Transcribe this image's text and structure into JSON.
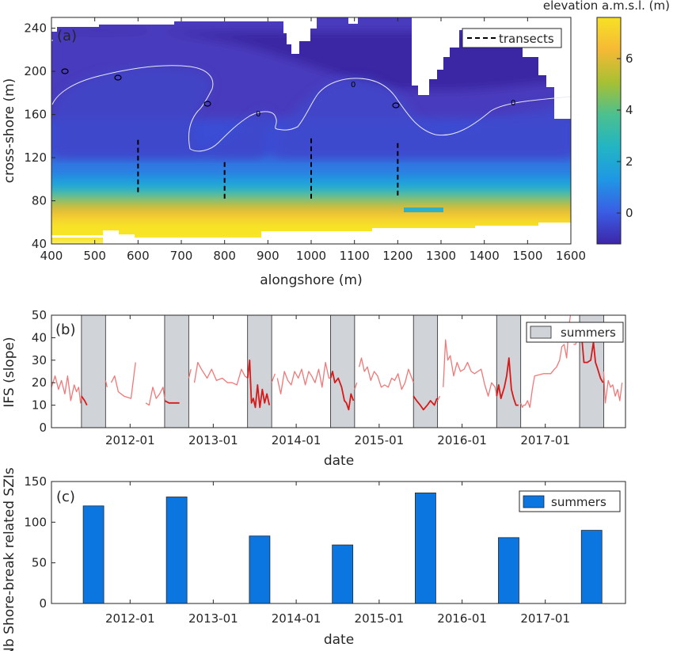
{
  "chart_data": [
    {
      "type": "heatmap",
      "panel_label": "(a)",
      "xlabel": "alongshore (m)",
      "ylabel": "cross-shore (m)",
      "xlim": [
        400,
        1600
      ],
      "ylim": [
        40,
        250
      ],
      "xticks": [
        "400",
        "500",
        "600",
        "700",
        "800",
        "900",
        "1000",
        "1100",
        "1200",
        "1300",
        "1400",
        "1500",
        "1600"
      ],
      "yticks": [
        "40",
        "80",
        "120",
        "160",
        "200",
        "240"
      ],
      "colorbar": {
        "title": "elevation a.m.s.l. (m)",
        "range": [
          -1.2,
          7.6
        ],
        "ticks": [
          "0",
          "2",
          "4",
          "6"
        ],
        "colors": [
          "#3d26a8",
          "#3a5ee5",
          "#1f98e4",
          "#22b5c4",
          "#4cc08f",
          "#a8c033",
          "#f6b935",
          "#f7e125"
        ]
      },
      "contour_label": "0",
      "legend": [
        {
          "label": "transects",
          "style": "dashed",
          "color": "#000000"
        }
      ],
      "transects": [
        {
          "x": 600,
          "y0": 88,
          "y1": 138
        },
        {
          "x": 800,
          "y0": 82,
          "y1": 117
        },
        {
          "x": 1000,
          "y0": 82,
          "y1": 138
        },
        {
          "x": 1200,
          "y0": 85,
          "y1": 135
        }
      ]
    },
    {
      "type": "line",
      "panel_label": "(b)",
      "xlabel": "date",
      "ylabel": "IFS (slope)",
      "ylim": [
        0,
        50
      ],
      "yticks": [
        "0",
        "10",
        "20",
        "30",
        "40",
        "50"
      ],
      "xticks": [
        "2012-01",
        "2013-01",
        "2014-01",
        "2015-01",
        "2016-01",
        "2017-01"
      ],
      "xlim": [
        "2011-01-20",
        "2017-12-20"
      ],
      "legend": [
        {
          "label": "summers",
          "color": "#d0d3d8"
        }
      ],
      "summers": [
        [
          "2011-06-01",
          "2011-09-15"
        ],
        [
          "2012-06-01",
          "2012-09-15"
        ],
        [
          "2013-06-01",
          "2013-09-15"
        ],
        [
          "2014-06-01",
          "2014-09-15"
        ],
        [
          "2015-06-01",
          "2015-09-15"
        ],
        [
          "2016-06-01",
          "2016-09-15"
        ],
        [
          "2017-06-01",
          "2017-09-15"
        ]
      ],
      "series": [
        {
          "color": "#f07878",
          "segments": [
            [
              [
                "2011-01-20",
                18
              ],
              [
                "2011-02-05",
                23
              ],
              [
                "2011-02-20",
                17
              ],
              [
                "2011-03-05",
                21
              ],
              [
                "2011-03-20",
                15
              ],
              [
                "2011-04-01",
                23
              ],
              [
                "2011-04-15",
                12
              ],
              [
                "2011-04-30",
                19
              ],
              [
                "2011-05-10",
                16
              ],
              [
                "2011-05-20",
                18
              ],
              [
                "2011-05-28",
                11
              ],
              [
                "2011-06-01",
                14
              ]
            ],
            [
              [
                "2011-09-15",
                21
              ],
              [
                "2011-09-22",
                18
              ]
            ],
            [
              [
                "2011-10-10",
                20
              ],
              [
                "2011-10-25",
                23
              ],
              [
                "2011-11-10",
                16
              ],
              [
                "2011-12-05",
                14
              ],
              [
                "2012-01-05",
                13
              ],
              [
                "2012-01-25",
                29
              ]
            ],
            [
              [
                "2012-03-10",
                11
              ],
              [
                "2012-03-25",
                10
              ],
              [
                "2012-04-10",
                18
              ],
              [
                "2012-04-25",
                13
              ],
              [
                "2012-05-10",
                15
              ],
              [
                "2012-05-25",
                18
              ],
              [
                "2012-06-01",
                13
              ]
            ],
            [
              [
                "2012-09-15",
                22
              ],
              [
                "2012-09-25",
                26
              ]
            ],
            [
              [
                "2012-10-10",
                20
              ],
              [
                "2012-10-25",
                29
              ],
              [
                "2012-11-10",
                26
              ],
              [
                "2012-12-05",
                22
              ],
              [
                "2012-12-25",
                26
              ],
              [
                "2013-01-15",
                21
              ],
              [
                "2013-02-10",
                22
              ],
              [
                "2013-03-05",
                20
              ],
              [
                "2013-03-25",
                20
              ],
              [
                "2013-04-15",
                19
              ],
              [
                "2013-05-05",
                26
              ],
              [
                "2013-05-20",
                23
              ],
              [
                "2013-06-01",
                22
              ]
            ],
            [
              [
                "2013-09-15",
                20
              ],
              [
                "2013-09-30",
                24
              ]
            ],
            [
              [
                "2013-10-10",
                22
              ],
              [
                "2013-10-25",
                15
              ],
              [
                "2013-11-10",
                25
              ],
              [
                "2013-11-25",
                21
              ],
              [
                "2013-12-10",
                19
              ],
              [
                "2013-12-25",
                25
              ],
              [
                "2014-01-10",
                22
              ],
              [
                "2014-01-25",
                26
              ],
              [
                "2014-02-10",
                19
              ],
              [
                "2014-02-25",
                25
              ],
              [
                "2014-03-10",
                23
              ],
              [
                "2014-03-25",
                20
              ],
              [
                "2014-04-10",
                26
              ],
              [
                "2014-04-25",
                18
              ],
              [
                "2014-05-10",
                29
              ],
              [
                "2014-05-25",
                22
              ],
              [
                "2014-06-01",
                22
              ]
            ],
            [
              [
                "2014-09-15",
                17
              ],
              [
                "2014-09-25",
                20
              ]
            ],
            [
              [
                "2014-10-05",
                27
              ],
              [
                "2014-10-15",
                31
              ],
              [
                "2014-10-28",
                25
              ],
              [
                "2014-11-10",
                27
              ],
              [
                "2014-11-25",
                21
              ],
              [
                "2014-12-10",
                25
              ],
              [
                "2014-12-25",
                23
              ],
              [
                "2015-01-10",
                18
              ],
              [
                "2015-01-25",
                19
              ],
              [
                "2015-02-10",
                18
              ],
              [
                "2015-02-25",
                22
              ],
              [
                "2015-03-10",
                21
              ],
              [
                "2015-03-25",
                24
              ],
              [
                "2015-04-10",
                17
              ],
              [
                "2015-04-25",
                20
              ],
              [
                "2015-05-10",
                26
              ],
              [
                "2015-05-25",
                22
              ],
              [
                "2015-06-01",
                20
              ]
            ],
            [
              [
                "2015-09-15",
                12
              ],
              [
                "2015-09-25",
                14
              ]
            ],
            [
              [
                "2015-10-10",
                18
              ],
              [
                "2015-10-20",
                39
              ],
              [
                "2015-10-30",
                30
              ],
              [
                "2015-11-10",
                32
              ],
              [
                "2015-11-25",
                23
              ],
              [
                "2015-12-10",
                29
              ],
              [
                "2015-12-25",
                25
              ],
              [
                "2016-01-10",
                26
              ],
              [
                "2016-01-25",
                29
              ],
              [
                "2016-02-10",
                25
              ],
              [
                "2016-02-25",
                24
              ],
              [
                "2016-03-10",
                25
              ],
              [
                "2016-03-25",
                26
              ],
              [
                "2016-04-10",
                19
              ],
              [
                "2016-04-25",
                14
              ],
              [
                "2016-05-10",
                20
              ],
              [
                "2016-05-25",
                18
              ],
              [
                "2016-06-01",
                14
              ]
            ],
            [
              [
                "2016-09-15",
                11
              ],
              [
                "2016-09-22",
                9
              ],
              [
                "2016-09-28",
                10
              ],
              [
                "2016-10-05",
                10
              ],
              [
                "2016-10-15",
                12
              ],
              [
                "2016-10-25",
                9
              ],
              [
                "2016-11-05",
                17
              ],
              [
                "2016-11-15",
                23
              ],
              [
                "2016-12-25",
                24
              ],
              [
                "2017-01-10",
                24
              ],
              [
                "2017-01-25",
                24
              ],
              [
                "2017-02-10",
                26
              ],
              [
                "2017-02-20",
                27
              ],
              [
                "2017-03-05",
                30
              ],
              [
                "2017-03-15",
                36
              ],
              [
                "2017-03-25",
                37
              ],
              [
                "2017-04-05",
                31
              ],
              [
                "2017-04-15",
                45
              ],
              [
                "2017-04-22",
                50
              ]
            ],
            [
              [
                "2017-05-05",
                37
              ],
              [
                "2017-05-15",
                37
              ],
              [
                "2017-05-25",
                41
              ],
              [
                "2017-06-01",
                43
              ]
            ],
            [
              [
                "2017-09-15",
                25
              ],
              [
                "2017-09-22",
                11
              ],
              [
                "2017-10-05",
                21
              ],
              [
                "2017-10-15",
                18
              ],
              [
                "2017-10-25",
                19
              ],
              [
                "2017-11-05",
                14
              ],
              [
                "2017-11-15",
                17
              ],
              [
                "2017-11-25",
                12
              ],
              [
                "2017-12-05",
                20
              ]
            ]
          ]
        },
        {
          "color": "#d61a1a",
          "segments": [
            [
              [
                "2011-06-01",
                14
              ],
              [
                "2011-06-15",
                12
              ],
              [
                "2011-06-25",
                10
              ]
            ],
            [
              [
                "2012-06-01",
                12
              ],
              [
                "2012-06-20",
                11
              ],
              [
                "2012-07-15",
                11
              ],
              [
                "2012-08-05",
                11
              ]
            ],
            [
              [
                "2013-06-01",
                22
              ],
              [
                "2013-06-10",
                30
              ],
              [
                "2013-06-18",
                11
              ],
              [
                "2013-06-26",
                13
              ],
              [
                "2013-07-05",
                9
              ],
              [
                "2013-07-15",
                19
              ],
              [
                "2013-07-25",
                9
              ],
              [
                "2013-08-05",
                17
              ],
              [
                "2013-08-15",
                11
              ],
              [
                "2013-08-25",
                15
              ],
              [
                "2013-09-05",
                10
              ]
            ],
            [
              [
                "2014-06-01",
                22
              ],
              [
                "2014-06-10",
                25
              ],
              [
                "2014-06-20",
                20
              ],
              [
                "2014-07-05",
                22
              ],
              [
                "2014-07-20",
                18
              ],
              [
                "2014-08-01",
                12
              ],
              [
                "2014-08-10",
                11
              ],
              [
                "2014-08-20",
                8
              ],
              [
                "2014-08-30",
                15
              ],
              [
                "2014-09-10",
                12
              ]
            ],
            [
              [
                "2015-06-01",
                14
              ],
              [
                "2015-06-15",
                12
              ],
              [
                "2015-07-01",
                10
              ],
              [
                "2015-07-15",
                8
              ],
              [
                "2015-08-01",
                10
              ],
              [
                "2015-08-15",
                12
              ],
              [
                "2015-09-01",
                10
              ],
              [
                "2015-09-12",
                13
              ]
            ],
            [
              [
                "2016-06-01",
                14
              ],
              [
                "2016-06-10",
                19
              ],
              [
                "2016-06-20",
                13
              ],
              [
                "2016-07-05",
                18
              ],
              [
                "2016-07-15",
                23
              ],
              [
                "2016-07-25",
                31
              ],
              [
                "2016-08-05",
                17
              ],
              [
                "2016-08-15",
                13
              ],
              [
                "2016-08-25",
                10
              ],
              [
                "2016-09-05",
                10
              ]
            ],
            [
              [
                "2017-06-01",
                43
              ],
              [
                "2017-06-10",
                41
              ],
              [
                "2017-06-20",
                29
              ],
              [
                "2017-07-05",
                29
              ],
              [
                "2017-07-20",
                30
              ],
              [
                "2017-08-01",
                38
              ],
              [
                "2017-08-10",
                29
              ],
              [
                "2017-08-20",
                26
              ],
              [
                "2017-09-01",
                22
              ],
              [
                "2017-09-12",
                20
              ]
            ]
          ]
        }
      ]
    },
    {
      "type": "bar",
      "panel_label": "(c)",
      "xlabel": "date",
      "ylabel": "Nb Shore-break related SZIs",
      "ylim": [
        0,
        150
      ],
      "yticks": [
        "0",
        "50",
        "100",
        "150"
      ],
      "xticks": [
        "2012-01",
        "2013-01",
        "2014-01",
        "2015-01",
        "2016-01",
        "2017-01"
      ],
      "xlim": [
        "2011-01-20",
        "2017-12-20"
      ],
      "legend": [
        {
          "label": "summers",
          "color": "#0c76e0"
        }
      ],
      "categories": [
        "2011",
        "2012",
        "2013",
        "2014",
        "2015",
        "2016",
        "2017"
      ],
      "bar_dates": [
        "2011-07-24",
        "2012-07-24",
        "2013-07-24",
        "2014-07-24",
        "2015-07-24",
        "2016-07-24",
        "2017-07-24"
      ],
      "values": [
        120,
        131,
        83,
        72,
        136,
        81,
        90
      ],
      "bar_color": "#0c76e0"
    }
  ]
}
